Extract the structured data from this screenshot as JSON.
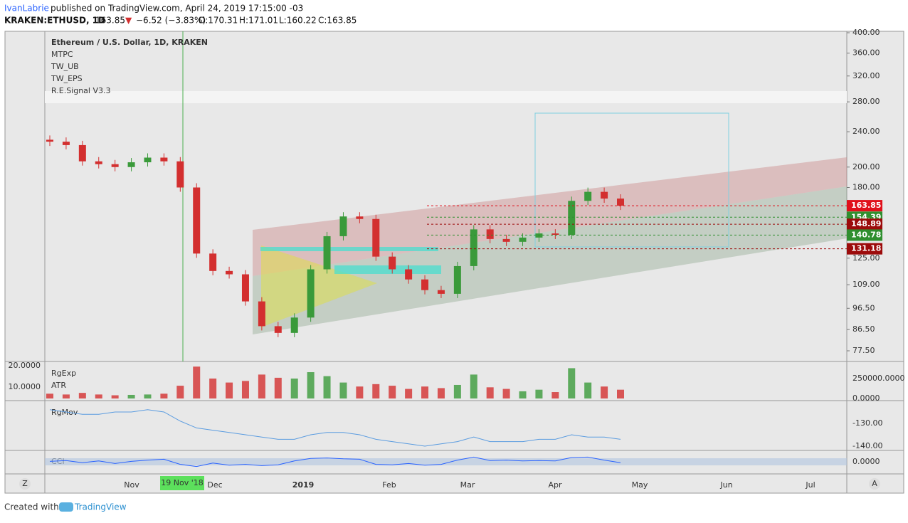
{
  "header": {
    "author": "IvanLabrie",
    "published": "published on TradingView.com, April 24, 2019 17:15:00 -03",
    "symbol": "KRAKEN:ETHUSD, 1D",
    "last": "163.85",
    "arrow": "▼",
    "change": "−6.52 (−3.83%)",
    "open": "O:170.31",
    "high": "H:171.01",
    "low": "L:160.22",
    "close": "C:163.85"
  },
  "chart_data": {
    "type": "candlestick",
    "title": "Ethereum / U.S. Dollar, 1D, KRAKEN",
    "indicators": [
      "MTPC",
      "TW_UB",
      "TW_EPS",
      "R.E.Signal V3.3"
    ],
    "log_scale": true,
    "ylim": [
      77.5,
      400
    ],
    "yticks": [
      {
        "value": 400,
        "label": "400.00"
      },
      {
        "value": 360,
        "label": "360.00"
      },
      {
        "value": 320,
        "label": "320.00"
      },
      {
        "value": 280,
        "label": "280.00"
      },
      {
        "value": 240,
        "label": "240.00"
      },
      {
        "value": 200,
        "label": "200.00"
      },
      {
        "value": 180,
        "label": "180.00"
      },
      {
        "value": 125,
        "label": "125.00"
      },
      {
        "value": 109,
        "label": "109.00"
      },
      {
        "value": 96.5,
        "label": "96.50"
      },
      {
        "value": 86.5,
        "label": "86.50"
      },
      {
        "value": 77.5,
        "label": "77.50"
      }
    ],
    "values": [
      228,
      224,
      206,
      203,
      200,
      205,
      210,
      206,
      180,
      128,
      117,
      115,
      100,
      88,
      85,
      92,
      118,
      140,
      155,
      153,
      126,
      118,
      112,
      106,
      104,
      120,
      145,
      138,
      136,
      139,
      142,
      141,
      168,
      176,
      170,
      163.85
    ],
    "up_color": "#3a9a3a",
    "down_color": "#d32f2f",
    "price_labels": [
      {
        "value": 163.85,
        "color": "#e0101b"
      },
      {
        "value": 154.39,
        "color": "#2f8f2f"
      },
      {
        "value": 148.89,
        "color": "#9c0b0b"
      },
      {
        "value": 140.78,
        "color": "#2f8f2f"
      },
      {
        "value": 131.18,
        "color": "#9c0b0b"
      }
    ],
    "x_labels": [
      "Nov",
      "Dec",
      "2019",
      "Feb",
      "Mar",
      "Apr",
      "May",
      "Jun",
      "Jul"
    ],
    "cursor_label": "19 Nov '18",
    "volume": {
      "labels": [
        "RgExp",
        "ATR"
      ],
      "left_ticks": [
        {
          "value": 20,
          "label": "20.0000"
        },
        {
          "value": 10,
          "label": "10.0000"
        }
      ],
      "yticks": [
        {
          "value": 250000,
          "label": "250000.0000"
        },
        {
          "value": 0,
          "label": "0.0000"
        }
      ],
      "values": [
        60000,
        50000,
        70000,
        50000,
        40000,
        45000,
        50000,
        60000,
        160000,
        400000,
        250000,
        200000,
        220000,
        300000,
        260000,
        250000,
        330000,
        280000,
        200000,
        150000,
        180000,
        160000,
        120000,
        150000,
        130000,
        170000,
        300000,
        140000,
        120000,
        90000,
        110000,
        80000,
        380000,
        200000,
        150000,
        110000
      ]
    },
    "rgmov": {
      "label": "RgMov",
      "yticks": [
        {
          "value": -130,
          "label": "-130.00"
        },
        {
          "value": -140,
          "label": "-140.00"
        }
      ],
      "values": [
        -124,
        -125,
        -126,
        -126,
        -125,
        -125,
        -124,
        -125,
        -129,
        -132,
        -133,
        -134,
        -135,
        -136,
        -137,
        -137,
        -135,
        -134,
        -134,
        -135,
        -137,
        -138,
        -139,
        -140,
        -139,
        -138,
        -136,
        -138,
        -138,
        -138,
        -137,
        -137,
        -135,
        -136,
        -136,
        -137
      ]
    },
    "cci": {
      "label": "CCI",
      "yticks": [
        {
          "value": 0,
          "label": "0.0000"
        }
      ],
      "values": [
        10,
        30,
        -20,
        20,
        -40,
        10,
        40,
        60,
        -60,
        -110,
        -30,
        -80,
        -60,
        -90,
        -70,
        20,
        80,
        90,
        70,
        60,
        -60,
        -70,
        -40,
        -80,
        -60,
        40,
        110,
        30,
        40,
        20,
        30,
        20,
        100,
        110,
        40,
        -20
      ]
    },
    "buttons": [
      "Z",
      "A"
    ]
  },
  "footer": {
    "text": "Created with",
    "brand": "TradingView"
  }
}
